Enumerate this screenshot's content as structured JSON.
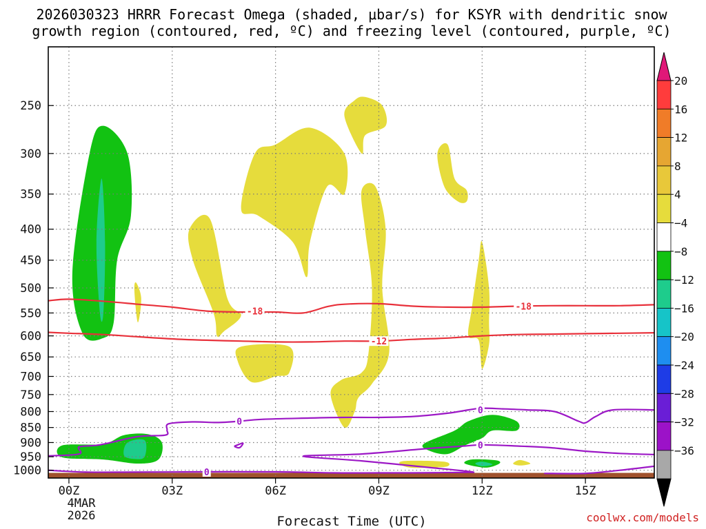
{
  "chart_data": {
    "type": "heatmap",
    "title_line1": "2026030323 HRRR Forecast Omega (shaded, μbar/s) for KSYR with dendritic snow",
    "title_line2": "growth region (contoured, red, ºC) and freezing level (contoured, purple, ºC)",
    "xlabel": "Forecast Time (UTC)",
    "ylabel": "",
    "x_ticks": [
      {
        "hour": 0,
        "label": "00Z"
      },
      {
        "hour": 3,
        "label": "03Z"
      },
      {
        "hour": 6,
        "label": "06Z"
      },
      {
        "hour": 9,
        "label": "09Z"
      },
      {
        "hour": 12,
        "label": "12Z"
      },
      {
        "hour": 15,
        "label": "15Z"
      }
    ],
    "x_date_label": [
      "4MAR",
      "2026"
    ],
    "x_range_hours": [
      -0.6,
      17
    ],
    "y_scale": "log-pressure",
    "y_range_hpa": [
      1030,
      200
    ],
    "y_ticks": [
      250,
      300,
      350,
      400,
      450,
      500,
      550,
      600,
      650,
      700,
      750,
      800,
      850,
      900,
      950,
      1000
    ],
    "grid": "dotted",
    "colorbar": {
      "ticks": [
        "20",
        "16",
        "12",
        "8",
        "4",
        "−4",
        "−8",
        "−12",
        "−16",
        "−20",
        "−24",
        "−28",
        "−32",
        "−36"
      ],
      "colors": [
        "#ff3c3c",
        "#f07c28",
        "#e6a632",
        "#e8c83a",
        "#e6dc3c",
        "#ffffff",
        "#12c212",
        "#1ecc8c",
        "#16c4c8",
        "#1e8ef0",
        "#1e3ce6",
        "#6a1ed6",
        "#9c12c8",
        "#a8a8a8"
      ],
      "top_arrow_color": "#e01878",
      "bottom_arrow_color": "#000000"
    },
    "shaded_regions": [
      {
        "value_class": "-4 to -8",
        "color": "#12c212",
        "points": [
          [
            0.4,
            595
          ],
          [
            0.1,
            470
          ],
          [
            0.6,
            300
          ],
          [
            1.0,
            270
          ],
          [
            1.7,
            300
          ],
          [
            1.8,
            380
          ],
          [
            1.4,
            450
          ],
          [
            1.3,
            570
          ],
          [
            1.0,
            605
          ]
        ]
      },
      {
        "value_class": "-8 to -12",
        "color": "#1ecc8c",
        "points": [
          [
            0.9,
            550
          ],
          [
            0.8,
            420
          ],
          [
            0.95,
            330
          ],
          [
            1.05,
            420
          ],
          [
            1.0,
            550
          ]
        ]
      },
      {
        "value_class": "-4 to -8",
        "color": "#12c212",
        "points": [
          [
            -0.2,
            952
          ],
          [
            -0.2,
            910
          ],
          [
            1.0,
            905
          ],
          [
            1.6,
            875
          ],
          [
            2.3,
            872
          ],
          [
            2.7,
            900
          ],
          [
            2.6,
            960
          ],
          [
            2.0,
            975
          ],
          [
            1.0,
            960
          ]
        ]
      },
      {
        "value_class": "-8 to -12",
        "color": "#1ecc8c",
        "points": [
          [
            1.6,
            945
          ],
          [
            1.7,
            900
          ],
          [
            2.2,
            892
          ],
          [
            2.2,
            950
          ],
          [
            1.9,
            958
          ]
        ]
      },
      {
        "value_class": "-4 to -8",
        "color": "#12c212",
        "points": [
          [
            10.5,
            930
          ],
          [
            10.3,
            905
          ],
          [
            11.2,
            860
          ],
          [
            11.6,
            830
          ],
          [
            12.3,
            810
          ],
          [
            13.0,
            830
          ],
          [
            13.0,
            860
          ],
          [
            12.3,
            860
          ],
          [
            12.0,
            885
          ],
          [
            11.5,
            910
          ],
          [
            11.0,
            940
          ]
        ]
      },
      {
        "value_class": "-4 to -8",
        "color": "#12c212",
        "points": [
          [
            11.5,
            975
          ],
          [
            11.7,
            960
          ],
          [
            12.4,
            963
          ],
          [
            12.5,
            975
          ],
          [
            12.1,
            990
          ]
        ]
      },
      {
        "value_class": "-8 to -12",
        "color": "#1ecc8c",
        "points": [
          [
            11.8,
            975
          ],
          [
            12.0,
            968
          ],
          [
            12.3,
            978
          ],
          [
            12.0,
            985
          ]
        ]
      },
      {
        "value_class": "4 to 8",
        "color": "#e6dc3c",
        "points": [
          [
            4.2,
            550
          ],
          [
            3.6,
            450
          ],
          [
            3.5,
            400
          ],
          [
            4.1,
            385
          ],
          [
            4.6,
            520
          ],
          [
            5.0,
            555
          ],
          [
            4.5,
            590
          ],
          [
            4.3,
            600
          ]
        ]
      },
      {
        "value_class": "4 to 8",
        "color": "#e6dc3c",
        "points": [
          [
            1.9,
            505
          ],
          [
            1.95,
            490
          ],
          [
            2.1,
            520
          ],
          [
            2.0,
            570
          ]
        ]
      },
      {
        "value_class": "4 to 8",
        "color": "#e6dc3c",
        "points": [
          [
            5.0,
            370
          ],
          [
            5.4,
            300
          ],
          [
            6.0,
            290
          ],
          [
            7.0,
            272
          ],
          [
            8.0,
            300
          ],
          [
            8.0,
            350
          ],
          [
            7.5,
            340
          ],
          [
            7.0,
            420
          ],
          [
            6.9,
            480
          ],
          [
            6.5,
            420
          ],
          [
            5.5,
            380
          ]
        ]
      },
      {
        "value_class": "4 to 8",
        "color": "#e6dc3c",
        "points": [
          [
            8.0,
            260
          ],
          [
            8.3,
            245
          ],
          [
            8.6,
            242
          ],
          [
            9.1,
            250
          ],
          [
            9.2,
            270
          ],
          [
            8.6,
            280
          ],
          [
            8.5,
            300
          ]
        ]
      },
      {
        "value_class": "4 to 8",
        "color": "#e6dc3c",
        "points": [
          [
            5.3,
            715
          ],
          [
            4.9,
            660
          ],
          [
            5.0,
            625
          ],
          [
            6.4,
            625
          ],
          [
            6.4,
            690
          ],
          [
            6.0,
            700
          ]
        ]
      },
      {
        "value_class": "4 to 8",
        "color": "#e6dc3c",
        "points": [
          [
            8.0,
            850
          ],
          [
            7.6,
            750
          ],
          [
            7.9,
            710
          ],
          [
            8.5,
            690
          ],
          [
            8.7,
            640
          ],
          [
            8.8,
            500
          ],
          [
            8.6,
            400
          ],
          [
            8.5,
            345
          ],
          [
            8.9,
            340
          ],
          [
            9.2,
            400
          ],
          [
            9.1,
            500
          ],
          [
            9.3,
            640
          ],
          [
            8.8,
            720
          ],
          [
            8.4,
            760
          ],
          [
            8.3,
            800
          ]
        ]
      },
      {
        "value_class": "4 to 8",
        "color": "#e6dc3c",
        "points": [
          [
            10.7,
            300
          ],
          [
            11.0,
            290
          ],
          [
            11.2,
            330
          ],
          [
            11.55,
            345
          ],
          [
            11.55,
            360
          ],
          [
            11.3,
            360
          ],
          [
            10.9,
            340
          ]
        ]
      },
      {
        "value_class": "4 to 8",
        "color": "#e6dc3c",
        "points": [
          [
            11.9,
            610
          ],
          [
            11.6,
            600
          ],
          [
            11.7,
            540
          ],
          [
            11.9,
            450
          ],
          [
            12.0,
            420
          ],
          [
            12.2,
            500
          ],
          [
            12.2,
            570
          ],
          [
            12.2,
            620
          ],
          [
            12.0,
            680
          ]
        ]
      },
      {
        "value_class": "4 to 8",
        "color": "#e6dc3c",
        "points": [
          [
            9.6,
            975
          ],
          [
            9.8,
            965
          ],
          [
            10.9,
            968
          ],
          [
            11.0,
            985
          ],
          [
            10.5,
            990
          ],
          [
            9.9,
            990
          ]
        ]
      },
      {
        "value_class": "4 to 8",
        "color": "#e6dc3c",
        "points": [
          [
            12.9,
            975
          ],
          [
            13.1,
            962
          ],
          [
            13.4,
            975
          ],
          [
            13.1,
            982
          ]
        ]
      }
    ],
    "contours": [
      {
        "name": "dgz_-18",
        "color": "#e8303a",
        "label": "-18",
        "label_positions": [
          [
            5.4,
            546
          ],
          [
            13.2,
            536
          ]
        ],
        "points": [
          [
            -0.6,
            525
          ],
          [
            0,
            522
          ],
          [
            1.0,
            526
          ],
          [
            2.0,
            532
          ],
          [
            3.0,
            538
          ],
          [
            4.0,
            546
          ],
          [
            5.0,
            548
          ],
          [
            6.0,
            548
          ],
          [
            6.8,
            550
          ],
          [
            7.5,
            537
          ],
          [
            8.0,
            532
          ],
          [
            9.0,
            531
          ],
          [
            10.0,
            536
          ],
          [
            11.0,
            538
          ],
          [
            12.0,
            538
          ],
          [
            13.0,
            536
          ],
          [
            14.0,
            535
          ],
          [
            15.0,
            535
          ],
          [
            16.0,
            535
          ],
          [
            17.0,
            533
          ]
        ]
      },
      {
        "name": "dgz_-12",
        "color": "#e8303a",
        "label": "-12",
        "label_positions": [
          [
            9.0,
            612
          ]
        ],
        "points": [
          [
            -0.6,
            592
          ],
          [
            0,
            594
          ],
          [
            1.0,
            597
          ],
          [
            2.0,
            602
          ],
          [
            3.0,
            607
          ],
          [
            4.0,
            610
          ],
          [
            5.0,
            612
          ],
          [
            6.0,
            614
          ],
          [
            7.0,
            614
          ],
          [
            8.0,
            612
          ],
          [
            9.0,
            612
          ],
          [
            10.0,
            608
          ],
          [
            11.0,
            605
          ],
          [
            12.0,
            600
          ],
          [
            13.0,
            597
          ],
          [
            14.0,
            596
          ],
          [
            15.0,
            595
          ],
          [
            16.0,
            594
          ],
          [
            17.0,
            593
          ]
        ]
      },
      {
        "name": "freezing_level_0",
        "color": "#9c18c6",
        "label": "0",
        "label_positions": [
          [
            4.95,
            830
          ],
          [
            11.95,
            795
          ]
        ],
        "points": [
          [
            -0.6,
            947
          ],
          [
            0.3,
            940
          ],
          [
            0.3,
            915
          ],
          [
            0.9,
            908
          ],
          [
            2.0,
            880
          ],
          [
            2.8,
            875
          ],
          [
            2.85,
            858
          ],
          [
            2.9,
            838
          ],
          [
            3.6,
            832
          ],
          [
            4.3,
            834
          ],
          [
            4.95,
            830
          ],
          [
            5.6,
            824
          ],
          [
            7.0,
            820
          ],
          [
            8.0,
            818
          ],
          [
            9.0,
            818
          ],
          [
            10.0,
            815
          ],
          [
            11.0,
            805
          ],
          [
            11.6,
            795
          ],
          [
            12.0,
            790
          ],
          [
            12.6,
            792
          ],
          [
            13.3,
            795
          ],
          [
            14.1,
            800
          ],
          [
            14.8,
            830
          ],
          [
            15.0,
            835
          ],
          [
            15.3,
            815
          ],
          [
            15.8,
            795
          ],
          [
            17.0,
            795
          ]
        ]
      },
      {
        "name": "freezing_level_0_loop",
        "color": "#9c18c6",
        "label": "",
        "label_positions": [],
        "points": [
          [
            4.8,
            913
          ],
          [
            5.05,
            902
          ],
          [
            4.95,
            918
          ],
          [
            4.8,
            913
          ]
        ]
      },
      {
        "name": "freezing_level_0_lower",
        "color": "#9c18c6",
        "label": "0",
        "label_positions": [
          [
            11.95,
            908
          ],
          [
            4.0,
            1006
          ]
        ],
        "points": [
          [
            -0.6,
            1000
          ],
          [
            0.5,
            1007
          ],
          [
            2.0,
            1007
          ],
          [
            4.0,
            1006
          ],
          [
            6.0,
            1006
          ],
          [
            7.7,
            1010
          ],
          [
            9.0,
            1010
          ],
          [
            10.0,
            1010
          ],
          [
            11.4,
            1008
          ],
          [
            11.7,
            1006
          ],
          [
            10.5,
            990
          ],
          [
            8.5,
            965
          ],
          [
            6.8,
            948
          ],
          [
            8.5,
            940
          ],
          [
            10.5,
            920
          ],
          [
            11.5,
            912
          ],
          [
            12.0,
            908
          ],
          [
            13.0,
            912
          ],
          [
            14.0,
            918
          ],
          [
            15.0,
            930
          ],
          [
            16.0,
            938
          ],
          [
            17.0,
            942
          ]
        ]
      },
      {
        "name": "freezing_level_0_right",
        "color": "#9c18c6",
        "label": "",
        "label_positions": [],
        "points": [
          [
            13.8,
            1012
          ],
          [
            15.0,
            1012
          ],
          [
            16.0,
            1000
          ],
          [
            17.0,
            985
          ]
        ]
      }
    ],
    "ground_color": "#a0522d",
    "ground_top_hpa": 1010
  },
  "footer": {
    "credit": "coolwx.com/models"
  }
}
